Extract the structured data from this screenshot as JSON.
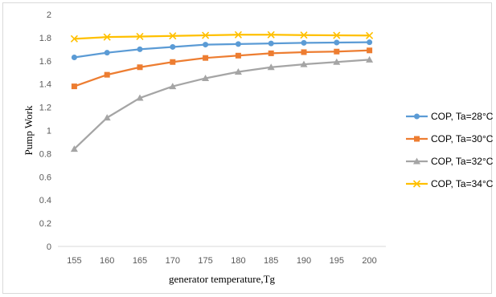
{
  "chart_data": {
    "type": "line",
    "title": "",
    "xlabel": "generator temperature,Tg",
    "ylabel": "Pump Work",
    "categories": [
      "155",
      "160",
      "165",
      "170",
      "175",
      "180",
      "185",
      "190",
      "195",
      "200"
    ],
    "yticks": [
      "0",
      "0.2",
      "0.4",
      "0.6",
      "0.8",
      "1",
      "1.2",
      "1.4",
      "1.6",
      "1.8",
      "2"
    ],
    "ylim": [
      0,
      2
    ],
    "grid": false,
    "legend_position": "right",
    "series": [
      {
        "name": "COP, Ta=28°C",
        "color": "#5b9bd5",
        "marker": "circle",
        "values": [
          1.63,
          1.67,
          1.7,
          1.72,
          1.74,
          1.745,
          1.75,
          1.755,
          1.758,
          1.76
        ]
      },
      {
        "name": "COP, Ta=30°C",
        "color": "#ed7d31",
        "marker": "square",
        "values": [
          1.38,
          1.48,
          1.545,
          1.59,
          1.625,
          1.645,
          1.665,
          1.675,
          1.68,
          1.69
        ]
      },
      {
        "name": "COP, Ta=32°C",
        "color": "#a5a5a5",
        "marker": "triangle",
        "values": [
          0.84,
          1.11,
          1.28,
          1.38,
          1.45,
          1.505,
          1.545,
          1.57,
          1.59,
          1.61
        ]
      },
      {
        "name": "COP, Ta=34°C",
        "color": "#ffc000",
        "marker": "x",
        "values": [
          1.79,
          1.805,
          1.81,
          1.815,
          1.82,
          1.825,
          1.825,
          1.822,
          1.82,
          1.818
        ]
      }
    ]
  }
}
